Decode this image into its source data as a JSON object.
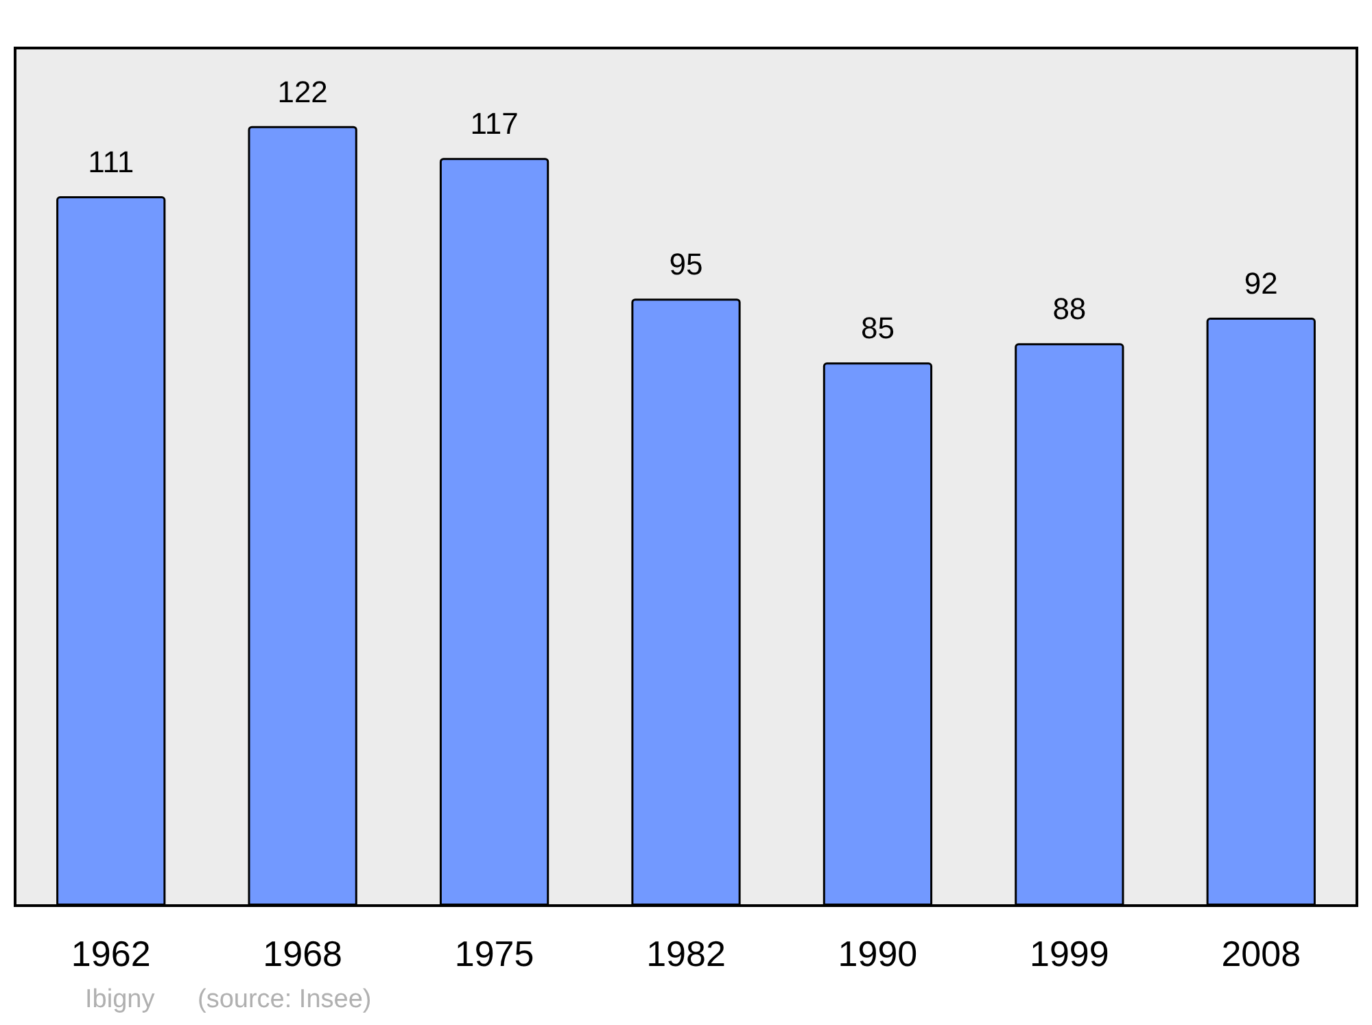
{
  "chart_data": {
    "type": "bar",
    "categories": [
      "1962",
      "1968",
      "1975",
      "1982",
      "1990",
      "1999",
      "2008"
    ],
    "values": [
      111,
      122,
      117,
      95,
      85,
      88,
      92
    ],
    "color": "#7299ff",
    "data_labels": true,
    "annotations": [
      "Ibigny",
      "(source: Insee)"
    ]
  }
}
